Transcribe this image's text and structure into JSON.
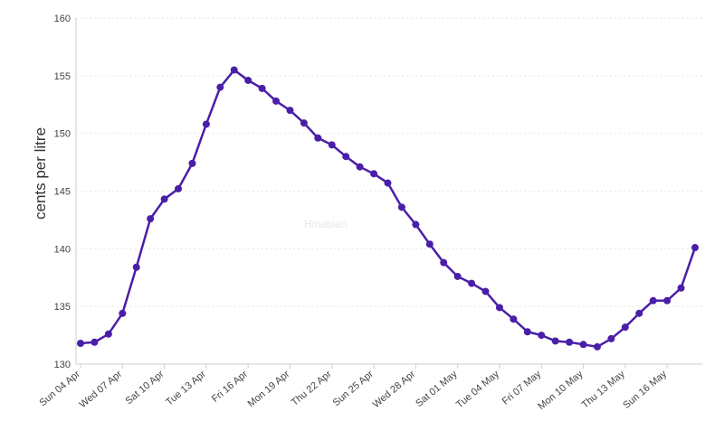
{
  "chart_data": {
    "type": "line",
    "ylabel": "cents per litre",
    "ylim": [
      130,
      160
    ],
    "yticks": [
      130,
      135,
      140,
      145,
      150,
      155,
      160
    ],
    "grid": true,
    "x_tick_labels": [
      "Sun 04 Apr",
      "Wed 07 Apr",
      "Sat 10 Apr",
      "Tue 13 Apr",
      "Fri 16 Apr",
      "Mon 19 Apr",
      "Thu 22 Apr",
      "Sun 25 Apr",
      "Wed 28 Apr",
      "Sat 01 May",
      "Tue 04 May",
      "Fri 07 May",
      "Mon 10 May",
      "Thu 13 May",
      "Sun 16 May"
    ],
    "x": [
      "2021-04-04",
      "2021-04-05",
      "2021-04-06",
      "2021-04-07",
      "2021-04-08",
      "2021-04-09",
      "2021-04-10",
      "2021-04-11",
      "2021-04-12",
      "2021-04-13",
      "2021-04-14",
      "2021-04-15",
      "2021-04-16",
      "2021-04-17",
      "2021-04-18",
      "2021-04-19",
      "2021-04-20",
      "2021-04-21",
      "2021-04-22",
      "2021-04-23",
      "2021-04-24",
      "2021-04-25",
      "2021-04-26",
      "2021-04-27",
      "2021-04-28",
      "2021-04-29",
      "2021-04-30",
      "2021-05-01",
      "2021-05-02",
      "2021-05-03",
      "2021-05-04",
      "2021-05-05",
      "2021-05-06",
      "2021-05-07",
      "2021-05-08",
      "2021-05-09",
      "2021-05-10",
      "2021-05-11",
      "2021-05-12",
      "2021-05-13",
      "2021-05-14",
      "2021-05-15",
      "2021-05-16",
      "2021-05-17",
      "2021-05-18"
    ],
    "series": [
      {
        "values": [
          131.8,
          131.9,
          132.6,
          134.4,
          138.4,
          142.6,
          144.3,
          145.2,
          147.4,
          150.8,
          154.0,
          155.5,
          154.6,
          153.9,
          152.8,
          152.0,
          150.9,
          149.6,
          149.0,
          148.0,
          147.1,
          146.5,
          145.7,
          143.6,
          142.1,
          140.4,
          138.8,
          137.6,
          137.0,
          136.3,
          134.9,
          133.9,
          132.8,
          132.5,
          132.0,
          131.9,
          131.7,
          131.5,
          132.2,
          133.2,
          134.4,
          135.5,
          135.5,
          136.6,
          140.1
        ]
      }
    ],
    "color": "#4a1fa8",
    "watermark": "Hinabian"
  }
}
